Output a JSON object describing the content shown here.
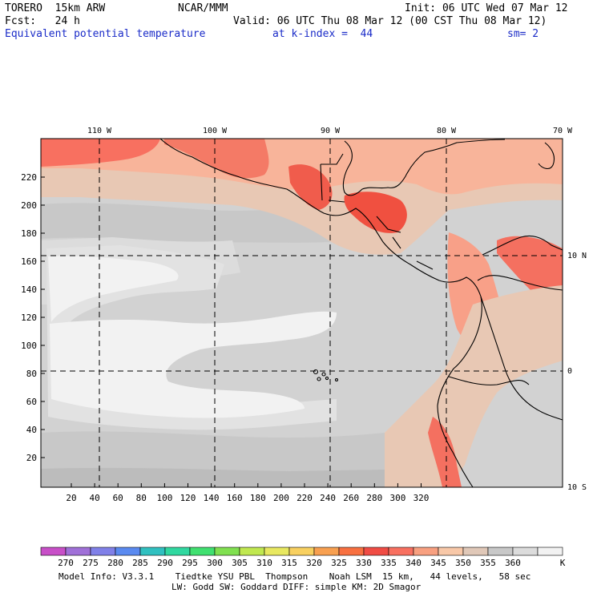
{
  "header": {
    "model": "TORERO  15km ARW",
    "org": "NCAR/MMM",
    "init": "Init: 06 UTC Wed 07 Mar 12",
    "fcst": "Fcst:   24 h",
    "valid": "Valid: 06 UTC Thu 08 Mar 12 (00 CST Thu 08 Mar 12)",
    "field": "Equivalent potential temperature",
    "level": "at k-index =  44",
    "smooth": "sm= 2"
  },
  "map": {
    "lon_labels": [
      "110 W",
      "100 W",
      "90 W",
      "80 W",
      "70 W"
    ],
    "lat_labels": [
      "10 N",
      "0",
      "10 S"
    ],
    "x_ticks": [
      "20",
      "40",
      "60",
      "80",
      "100",
      "120",
      "140",
      "160",
      "180",
      "200",
      "220",
      "240",
      "260",
      "280",
      "300",
      "320"
    ],
    "y_ticks": [
      "20",
      "40",
      "60",
      "80",
      "100",
      "120",
      "140",
      "160",
      "180",
      "200",
      "220"
    ]
  },
  "colorbar": {
    "labels": [
      "270",
      "275",
      "280",
      "285",
      "290",
      "295",
      "300",
      "305",
      "310",
      "315",
      "320",
      "325",
      "330",
      "335",
      "340",
      "345",
      "350",
      "355",
      "360"
    ],
    "unit": "K",
    "colors": [
      "#c84fc8",
      "#a070d8",
      "#8080e8",
      "#5a8af0",
      "#30c0c0",
      "#30d8a0",
      "#40e070",
      "#80e050",
      "#c0e850",
      "#e8e860",
      "#f8d060",
      "#f8a050",
      "#f87040",
      "#f04c44",
      "#f87060",
      "#f8a080",
      "#f8c8a8",
      "#e0c8b8",
      "#c8c8c8",
      "#dcdcdc",
      "#f2f2f2"
    ]
  },
  "footer": {
    "line1": "Model Info: V3.3.1    Tiedtke YSU PBL  Thompson    Noah LSM  15 km,   44 levels,   58 sec",
    "line2": "LW: Godd SW: Goddard DIFF: simple KM: 2D Smagor"
  }
}
